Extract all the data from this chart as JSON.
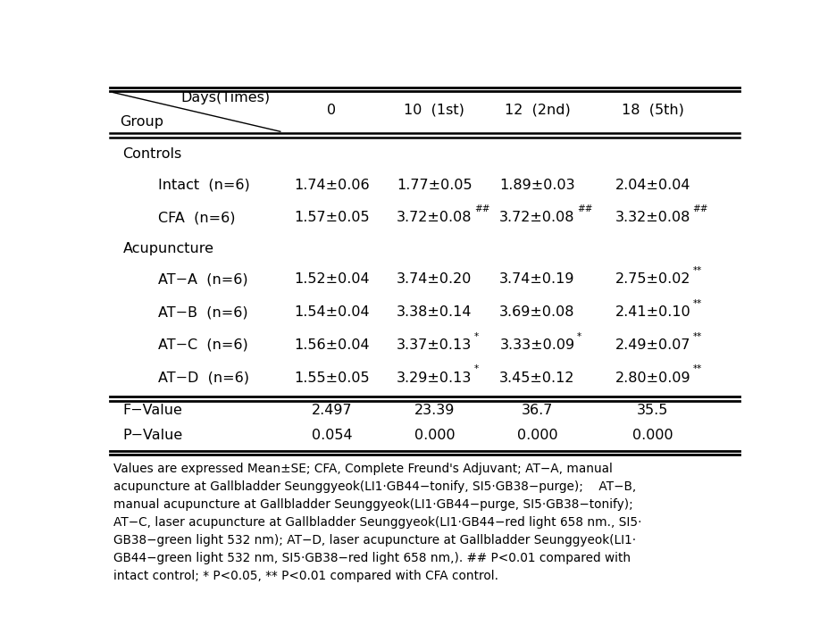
{
  "col_headers": [
    "0",
    "10  (1st)",
    "12  (2nd)",
    "18  (5th)"
  ],
  "rows": [
    {
      "label": "Controls",
      "indent": 0,
      "values": [
        "",
        "",
        "",
        ""
      ],
      "superscripts": [
        "",
        "",
        "",
        ""
      ],
      "is_section": true
    },
    {
      "label": "Intact  (n=6)",
      "indent": 1,
      "values": [
        "1.74±0.06",
        "1.77±0.05",
        "1.89±0.03",
        "2.04±0.04"
      ],
      "superscripts": [
        "",
        "",
        "",
        ""
      ],
      "is_section": false
    },
    {
      "label": "CFA  (n=6)",
      "indent": 1,
      "values": [
        "1.57±0.05",
        "3.72±0.08",
        "3.72±0.08",
        "3.32±0.08"
      ],
      "superscripts": [
        "",
        "##",
        "##",
        "##"
      ],
      "is_section": false
    },
    {
      "label": "Acupuncture",
      "indent": 0,
      "values": [
        "",
        "",
        "",
        ""
      ],
      "superscripts": [
        "",
        "",
        "",
        ""
      ],
      "is_section": true
    },
    {
      "label": "AT−A  (n=6)",
      "indent": 1,
      "values": [
        "1.52±0.04",
        "3.74±0.20",
        "3.74±0.19",
        "2.75±0.02"
      ],
      "superscripts": [
        "",
        "",
        "",
        "**"
      ],
      "is_section": false
    },
    {
      "label": "AT−B  (n=6)",
      "indent": 1,
      "values": [
        "1.54±0.04",
        "3.38±0.14",
        "3.69±0.08",
        "2.41±0.10"
      ],
      "superscripts": [
        "",
        "",
        "",
        "**"
      ],
      "is_section": false
    },
    {
      "label": "AT−C  (n=6)",
      "indent": 1,
      "values": [
        "1.56±0.04",
        "3.37±0.13",
        "3.33±0.09",
        "2.49±0.07"
      ],
      "superscripts": [
        "",
        "*",
        "*",
        "**"
      ],
      "is_section": false
    },
    {
      "label": "AT−D  (n=6)",
      "indent": 1,
      "values": [
        "1.55±0.05",
        "3.29±0.13",
        "3.45±0.12",
        "2.80±0.09"
      ],
      "superscripts": [
        "",
        "*",
        "",
        "**"
      ],
      "is_section": false
    }
  ],
  "footer_rows": [
    {
      "label": "F−Value",
      "values": [
        "2.497",
        "23.39",
        "36.7",
        "35.5"
      ]
    },
    {
      "label": "P−Value",
      "values": [
        "0.054",
        "0.000",
        "0.000",
        "0.000"
      ]
    }
  ],
  "footnote": "Values are expressed Mean±SE; CFA, Complete Freund's Adjuvant; AT−A, manual\nacupuncture at Gallbladder Seunggyeok(LI1·GB44−tonify, SI5·GB38−purge);    AT−B,\nmanual acupuncture at Gallbladder Seunggyeok(LI1·GB44−purge, SI5·GB38−tonify);\nAT−C, laser acupuncture at Gallbladder Seunggyeok(LI1·GB44−red light 658 nm., SI5·\nGB38−green light 532 nm); AT−D, laser acupuncture at Gallbladder Seunggyeok(LI1·\nGB44−green light 532 nm, SI5·GB38−red light 658 nm,). ## P<0.01 compared with\nintact control; * P<0.05, ** P<0.01 compared with CFA control.",
  "font_size": 11.5,
  "sup_font_size": 7.5,
  "footnote_font_size": 9.8,
  "bg_color": "white"
}
